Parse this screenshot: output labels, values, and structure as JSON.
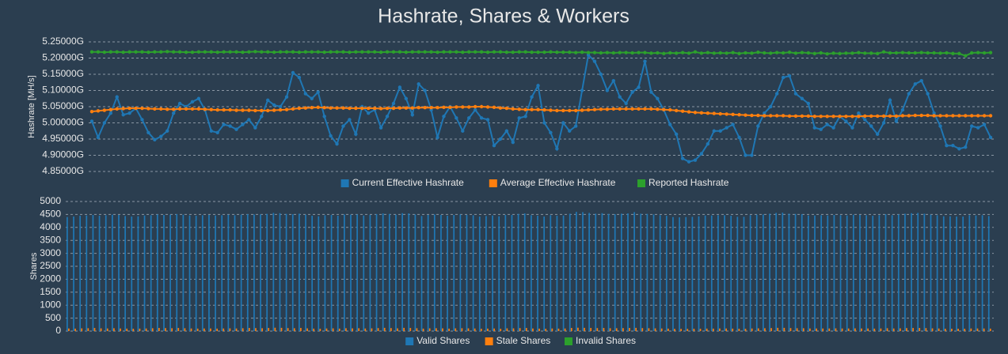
{
  "title": "Hashrate, Shares & Workers",
  "chart_data": [
    {
      "type": "line",
      "ylabel": "Hashrate [MH/s]",
      "grid": true,
      "ylim": [
        4.85,
        5.25
      ],
      "yticks": [
        {
          "value": 4.85,
          "label": "4.85000G"
        },
        {
          "value": 4.9,
          "label": "4.90000G"
        },
        {
          "value": 4.95,
          "label": "4.95000G"
        },
        {
          "value": 5.0,
          "label": "5.00000G"
        },
        {
          "value": 5.05,
          "label": "5.05000G"
        },
        {
          "value": 5.1,
          "label": "5.10000G"
        },
        {
          "value": 5.15,
          "label": "5.15000G"
        },
        {
          "value": 5.2,
          "label": "5.20000G"
        },
        {
          "value": 5.25,
          "label": "5.25000G"
        }
      ],
      "series": [
        {
          "name": "Current Effective Hashrate",
          "color": "#1f77b4",
          "values": [
            5.005,
            4.955,
            5.0,
            5.03,
            5.08,
            5.025,
            5.03,
            5.045,
            5.01,
            4.97,
            4.948,
            4.958,
            4.975,
            5.03,
            5.06,
            5.05,
            5.065,
            5.075,
            5.04,
            4.975,
            4.97,
            4.995,
            4.99,
            4.98,
            4.995,
            5.01,
            4.985,
            5.02,
            5.07,
            5.055,
            5.05,
            5.08,
            5.155,
            5.14,
            5.09,
            5.075,
            5.095,
            5.02,
            4.96,
            4.935,
            4.99,
            5.01,
            4.965,
            5.05,
            5.03,
            5.04,
            4.985,
            5.02,
            5.06,
            5.11,
            5.075,
            5.025,
            5.12,
            5.1,
            5.04,
            4.955,
            5.02,
            5.05,
            5.015,
            4.975,
            5.015,
            5.04,
            5.015,
            5.01,
            4.93,
            4.95,
            4.975,
            4.94,
            5.015,
            5.02,
            5.08,
            5.115,
            5.0,
            4.97,
            4.92,
            5.0,
            4.975,
            4.99,
            5.1,
            5.21,
            5.19,
            5.15,
            5.1,
            5.13,
            5.08,
            5.06,
            5.095,
            5.11,
            5.19,
            5.095,
            5.075,
            5.04,
            4.995,
            4.965,
            4.89,
            4.88,
            4.885,
            4.905,
            4.935,
            4.975,
            4.975,
            4.985,
            4.995,
            4.955,
            4.9,
            4.9,
            4.99,
            5.03,
            5.05,
            5.09,
            5.14,
            5.145,
            5.09,
            5.075,
            5.06,
            4.985,
            4.98,
            4.995,
            4.985,
            5.02,
            5.005,
            4.985,
            5.03,
            5.01,
            4.99,
            4.965,
            5.0,
            5.07,
            5.005,
            5.04,
            5.09,
            5.12,
            5.13,
            5.09,
            5.03,
            4.99,
            4.93,
            4.93,
            4.92,
            4.925,
            4.99,
            4.985,
            4.995,
            4.955
          ]
        },
        {
          "name": "Average Effective Hashrate",
          "color": "#ff7f0e",
          "values": [
            5.035,
            5.037,
            5.039,
            5.041,
            5.043,
            5.044,
            5.045,
            5.045,
            5.045,
            5.044,
            5.043,
            5.043,
            5.042,
            5.042,
            5.043,
            5.043,
            5.043,
            5.043,
            5.042,
            5.041,
            5.04,
            5.04,
            5.04,
            5.039,
            5.039,
            5.039,
            5.038,
            5.038,
            5.038,
            5.039,
            5.04,
            5.041,
            5.043,
            5.045,
            5.046,
            5.047,
            5.048,
            5.047,
            5.046,
            5.046,
            5.046,
            5.045,
            5.045,
            5.045,
            5.045,
            5.045,
            5.044,
            5.045,
            5.045,
            5.046,
            5.046,
            5.046,
            5.047,
            5.047,
            5.047,
            5.047,
            5.048,
            5.048,
            5.049,
            5.049,
            5.049,
            5.05,
            5.05,
            5.049,
            5.048,
            5.046,
            5.045,
            5.043,
            5.042,
            5.041,
            5.041,
            5.041,
            5.04,
            5.039,
            5.038,
            5.038,
            5.038,
            5.038,
            5.039,
            5.04,
            5.041,
            5.042,
            5.042,
            5.043,
            5.043,
            5.043,
            5.043,
            5.043,
            5.043,
            5.043,
            5.042,
            5.041,
            5.04,
            5.038,
            5.036,
            5.034,
            5.032,
            5.031,
            5.03,
            5.029,
            5.028,
            5.027,
            5.026,
            5.025,
            5.024,
            5.023,
            5.023,
            5.022,
            5.022,
            5.022,
            5.022,
            5.021,
            5.021,
            5.021,
            5.021,
            5.02,
            5.02,
            5.02,
            5.02,
            5.02,
            5.02,
            5.02,
            5.02,
            5.021,
            5.021,
            5.021,
            5.021,
            5.021,
            5.021,
            5.022,
            5.022,
            5.023,
            5.023,
            5.023,
            5.022,
            5.022,
            5.022,
            5.022,
            5.022,
            5.022,
            5.022,
            5.022,
            5.022,
            5.022
          ]
        },
        {
          "name": "Reported Hashrate",
          "color": "#2ca02c",
          "values": [
            5.219,
            5.219,
            5.218,
            5.219,
            5.219,
            5.218,
            5.219,
            5.219,
            5.219,
            5.218,
            5.219,
            5.219,
            5.22,
            5.219,
            5.219,
            5.218,
            5.218,
            5.219,
            5.219,
            5.219,
            5.218,
            5.219,
            5.219,
            5.219,
            5.218,
            5.219,
            5.22,
            5.219,
            5.219,
            5.218,
            5.219,
            5.219,
            5.219,
            5.218,
            5.219,
            5.219,
            5.219,
            5.218,
            5.219,
            5.219,
            5.219,
            5.218,
            5.219,
            5.219,
            5.219,
            5.219,
            5.218,
            5.219,
            5.219,
            5.219,
            5.218,
            5.219,
            5.219,
            5.219,
            5.219,
            5.218,
            5.219,
            5.219,
            5.219,
            5.218,
            5.219,
            5.219,
            5.219,
            5.218,
            5.219,
            5.219,
            5.218,
            5.218,
            5.219,
            5.219,
            5.218,
            5.218,
            5.218,
            5.219,
            5.218,
            5.218,
            5.218,
            5.217,
            5.218,
            5.217,
            5.217,
            5.216,
            5.217,
            5.216,
            5.217,
            5.217,
            5.216,
            5.217,
            5.217,
            5.215,
            5.216,
            5.214,
            5.216,
            5.215,
            5.217,
            5.215,
            5.219,
            5.215,
            5.217,
            5.215,
            5.216,
            5.215,
            5.217,
            5.214,
            5.216,
            5.215,
            5.218,
            5.216,
            5.215,
            5.217,
            5.216,
            5.218,
            5.215,
            5.217,
            5.216,
            5.214,
            5.216,
            5.213,
            5.215,
            5.214,
            5.215,
            5.215,
            5.217,
            5.215,
            5.215,
            5.214,
            5.219,
            5.216,
            5.216,
            5.217,
            5.216,
            5.216,
            5.217,
            5.216,
            5.216,
            5.215,
            5.216,
            5.214,
            5.214,
            5.207,
            5.216,
            5.217,
            5.216,
            5.217
          ]
        }
      ]
    },
    {
      "type": "bar",
      "ylabel": "Shares",
      "grid": true,
      "ylim": [
        0,
        5000
      ],
      "yticks": [
        0,
        500,
        1000,
        1500,
        2000,
        2500,
        3000,
        3500,
        4000,
        4500,
        5000
      ],
      "series": [
        {
          "name": "Valid Shares",
          "color": "#1f77b4",
          "values": [
            4400,
            4420,
            4450,
            4460,
            4480,
            4450,
            4470,
            4490,
            4480,
            4440,
            4420,
            4430,
            4460,
            4470,
            4500,
            4480,
            4490,
            4510,
            4490,
            4460,
            4450,
            4470,
            4480,
            4460,
            4470,
            4490,
            4470,
            4490,
            4510,
            4500,
            4500,
            4520,
            4560,
            4550,
            4520,
            4510,
            4530,
            4490,
            4450,
            4430,
            4470,
            4480,
            4450,
            4500,
            4490,
            4500,
            4460,
            4480,
            4510,
            4540,
            4520,
            4490,
            4550,
            4540,
            4500,
            4440,
            4480,
            4500,
            4480,
            4450,
            4480,
            4500,
            4480,
            4470,
            4420,
            4440,
            4460,
            4430,
            4480,
            4480,
            4520,
            4540,
            4470,
            4450,
            4420,
            4470,
            4450,
            4460,
            4530,
            4600,
            4590,
            4560,
            4530,
            4550,
            4520,
            4510,
            4530,
            4540,
            4590,
            4530,
            4520,
            4500,
            4470,
            4450,
            4400,
            4390,
            4400,
            4410,
            4430,
            4460,
            4460,
            4470,
            4470,
            4450,
            4410,
            4410,
            4470,
            4490,
            4500,
            4530,
            4560,
            4570,
            4530,
            4520,
            4510,
            4460,
            4460,
            4470,
            4460,
            4480,
            4470,
            4460,
            4490,
            4480,
            4470,
            4450,
            4470,
            4510,
            4470,
            4500,
            4530,
            4550,
            4560,
            4530,
            4490,
            4470,
            4430,
            4430,
            4420,
            4420,
            4470,
            4460,
            4470,
            4440
          ]
        },
        {
          "name": "Stale Shares",
          "color": "#ff7f0e",
          "values": [
            100,
            95,
            105,
            110,
            120,
            105,
            100,
            110,
            100,
            95,
            90,
            95,
            100,
            110,
            120,
            115,
            110,
            120,
            110,
            100,
            95,
            100,
            100,
            95,
            100,
            105,
            100,
            110,
            120,
            115,
            110,
            120,
            130,
            125,
            115,
            110,
            120,
            105,
            95,
            90,
            100,
            105,
            95,
            110,
            105,
            110,
            100,
            105,
            115,
            125,
            115,
            105,
            125,
            120,
            110,
            95,
            105,
            110,
            105,
            95,
            105,
            110,
            105,
            100,
            90,
            95,
            100,
            90,
            105,
            105,
            115,
            120,
            100,
            95,
            90,
            100,
            95,
            100,
            120,
            130,
            125,
            120,
            115,
            120,
            110,
            110,
            115,
            120,
            125,
            115,
            110,
            105,
            100,
            95,
            85,
            85,
            85,
            90,
            90,
            95,
            95,
            100,
            100,
            95,
            90,
            90,
            100,
            105,
            110,
            115,
            125,
            125,
            115,
            110,
            110,
            100,
            100,
            100,
            100,
            105,
            100,
            100,
            105,
            100,
            100,
            95,
            100,
            110,
            100,
            105,
            115,
            120,
            120,
            115,
            105,
            100,
            90,
            90,
            90,
            90,
            100,
            100,
            100,
            95
          ]
        },
        {
          "name": "Invalid Shares",
          "color": "#2ca02c",
          "values": [
            0,
            0,
            0,
            0,
            0,
            0,
            0,
            0,
            0,
            0,
            0,
            0,
            0,
            0,
            0,
            0,
            0,
            0,
            0,
            0,
            0,
            0,
            0,
            0,
            0,
            0,
            0,
            0,
            0,
            0,
            0,
            0,
            0,
            0,
            0,
            0,
            0,
            0,
            0,
            0,
            0,
            0,
            0,
            0,
            0,
            0,
            0,
            0,
            0,
            0,
            0,
            0,
            0,
            0,
            0,
            0,
            0,
            0,
            0,
            0,
            0,
            0,
            0,
            0,
            0,
            0,
            0,
            0,
            0,
            0,
            0,
            0,
            0,
            0,
            0,
            0,
            0,
            0,
            0,
            0,
            0,
            0,
            0,
            0,
            0,
            0,
            0,
            0,
            0,
            0,
            0,
            0,
            0,
            0,
            0,
            0,
            0,
            0,
            0,
            0,
            0,
            0,
            0,
            0,
            0,
            0,
            0,
            0,
            0,
            0,
            0,
            0,
            0,
            0,
            0,
            0,
            0,
            0,
            0,
            0,
            0,
            0,
            0,
            0,
            0,
            0,
            0,
            0,
            0,
            0,
            0,
            0,
            0,
            0,
            0,
            0,
            0,
            0,
            0,
            0,
            0,
            0,
            0,
            0
          ]
        }
      ]
    }
  ]
}
